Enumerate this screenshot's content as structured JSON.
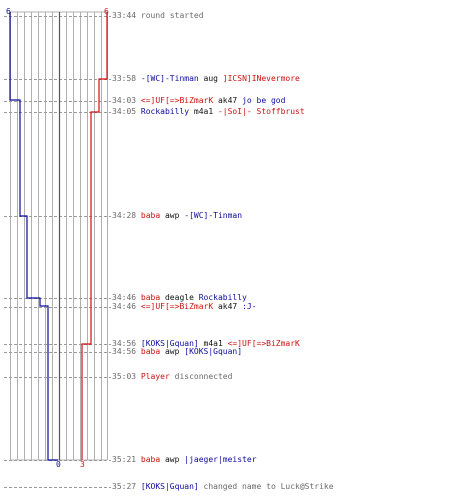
{
  "counts": {
    "left_top": "6",
    "right_top": "6",
    "left_bottom": "0",
    "right_bottom": "3"
  },
  "colors": {
    "blue_team": "#0b0b9a",
    "red_team": "#cc1111",
    "time": "#6a6a6a",
    "neutral": "#101010",
    "grid": "#9a9a9a"
  },
  "events": [
    {
      "time": "33:44",
      "parts": [
        {
          "text": "round started",
          "style": "g"
        }
      ]
    },
    {
      "time": "33:58",
      "parts": [
        {
          "text": "-[WC]-Tinman",
          "style": "a"
        },
        {
          "text": " aug ",
          "style": "k"
        },
        {
          "text": "]ICSN]INevermore",
          "style": "r"
        }
      ]
    },
    {
      "time": "34:03",
      "parts": [
        {
          "text": "<=]UF[=>BiZmarK",
          "style": "r"
        },
        {
          "text": " ak47 ",
          "style": "k"
        },
        {
          "text": "jo be god",
          "style": "a"
        }
      ]
    },
    {
      "time": "34:05",
      "parts": [
        {
          "text": "Rockabilly",
          "style": "a"
        },
        {
          "text": " m4a1 ",
          "style": "k"
        },
        {
          "text": "-|SoI|- Stoffbrust",
          "style": "r"
        }
      ]
    },
    {
      "time": "34:28",
      "parts": [
        {
          "text": "baba",
          "style": "r"
        },
        {
          "text": " awp ",
          "style": "k"
        },
        {
          "text": "-[WC]-Tinman",
          "style": "a"
        }
      ]
    },
    {
      "time": "34:46",
      "parts": [
        {
          "text": "baba",
          "style": "r"
        },
        {
          "text": " deagle ",
          "style": "k"
        },
        {
          "text": "Rockabilly",
          "style": "a"
        }
      ]
    },
    {
      "time": "34:46",
      "parts": [
        {
          "text": "<=]UF[=>BiZmarK",
          "style": "r"
        },
        {
          "text": " ak47 ",
          "style": "k"
        },
        {
          "text": ":J-",
          "style": "a"
        }
      ]
    },
    {
      "time": "34:56",
      "parts": [
        {
          "text": "[KOKS|Gquan]",
          "style": "a"
        },
        {
          "text": " m4a1 ",
          "style": "k"
        },
        {
          "text": "<=]UF[=>BiZmarK",
          "style": "r"
        }
      ]
    },
    {
      "time": "34:56",
      "parts": [
        {
          "text": "baba",
          "style": "r"
        },
        {
          "text": " awp ",
          "style": "k"
        },
        {
          "text": "[KOKS|Gquan]",
          "style": "a"
        }
      ]
    },
    {
      "time": "35:03",
      "parts": [
        {
          "text": "Player",
          "style": "r"
        },
        {
          "text": " disconnected",
          "style": "g"
        }
      ]
    },
    {
      "time": "35:21",
      "parts": [
        {
          "text": "baba",
          "style": "r"
        },
        {
          "text": " awp ",
          "style": "k"
        },
        {
          "text": "|jaeger|meister",
          "style": "a"
        }
      ]
    },
    {
      "time": "35:27",
      "parts": [
        {
          "text": "[KOKS|Gquan]",
          "style": "a"
        },
        {
          "text": " changed name to Luck@Strike",
          "style": "g"
        }
      ]
    }
  ]
}
